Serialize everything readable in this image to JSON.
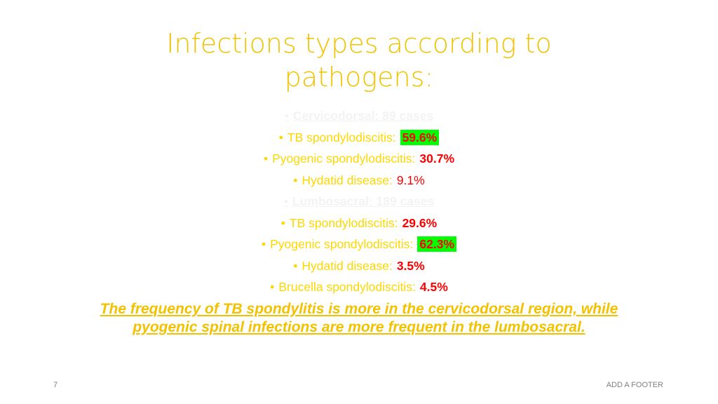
{
  "slide": {
    "title_line1": "Infections types according to",
    "title_line2": "pathogens:",
    "bullets": [
      {
        "label": "Cervicodorsal: 89 cases",
        "value": ""
      },
      {
        "label": "TB spondylodiscitis:",
        "value": "59.6%"
      },
      {
        "label": "Pyogenic spondylodiscitis:",
        "value": "30.7%"
      },
      {
        "label": "Hydatid disease:",
        "value": "9.1%"
      },
      {
        "label": "Lumbosacral: 189 cases",
        "value": ""
      },
      {
        "label": "TB spondylodiscitis:",
        "value": "29.6%"
      },
      {
        "label": "Pyogenic spondylodiscitis:",
        "value": "62.3%"
      },
      {
        "label": "Hydatid disease:",
        "value": "3.5%"
      },
      {
        "label": "Brucella spondylodiscitis:",
        "value": "4.5%"
      }
    ],
    "bullet_char": "•",
    "conclusion_line1": "The frequency of TB spondylitis is more in the cervicodorsal region, while",
    "conclusion_line2": "pyogenic spinal infections are more frequent in the lumbosacral.",
    "slide_number": "7",
    "footer": "ADD A FOOTER",
    "colors": {
      "title": "#f2c200",
      "bullet_text": "#ffd700",
      "value_red": "#ff0000",
      "highlight": "#00ff00",
      "faint_heading": "#f3f3f3"
    }
  }
}
